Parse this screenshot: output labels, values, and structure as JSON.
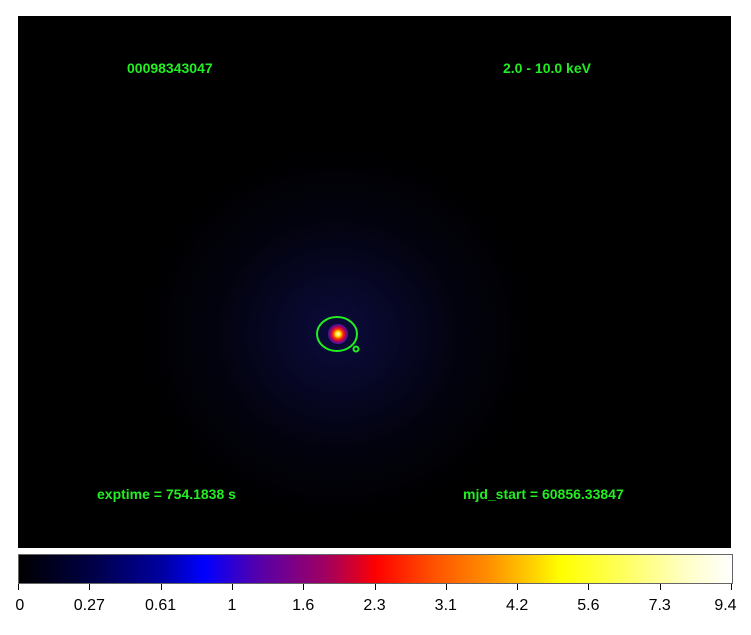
{
  "image": {
    "obsid": "00098343047",
    "energy_band": "2.0 - 10.0 keV",
    "exptime": "exptime = 754.1838 s",
    "mjd_start": "mjd_start = 60856.33847",
    "region_color": "#22ee22"
  },
  "colorbar": {
    "colormap": "heat",
    "ticks": [
      "0",
      "0.27",
      "0.61",
      "1",
      "1.6",
      "2.3",
      "3.1",
      "4.2",
      "5.6",
      "7.3",
      "9.4"
    ]
  }
}
